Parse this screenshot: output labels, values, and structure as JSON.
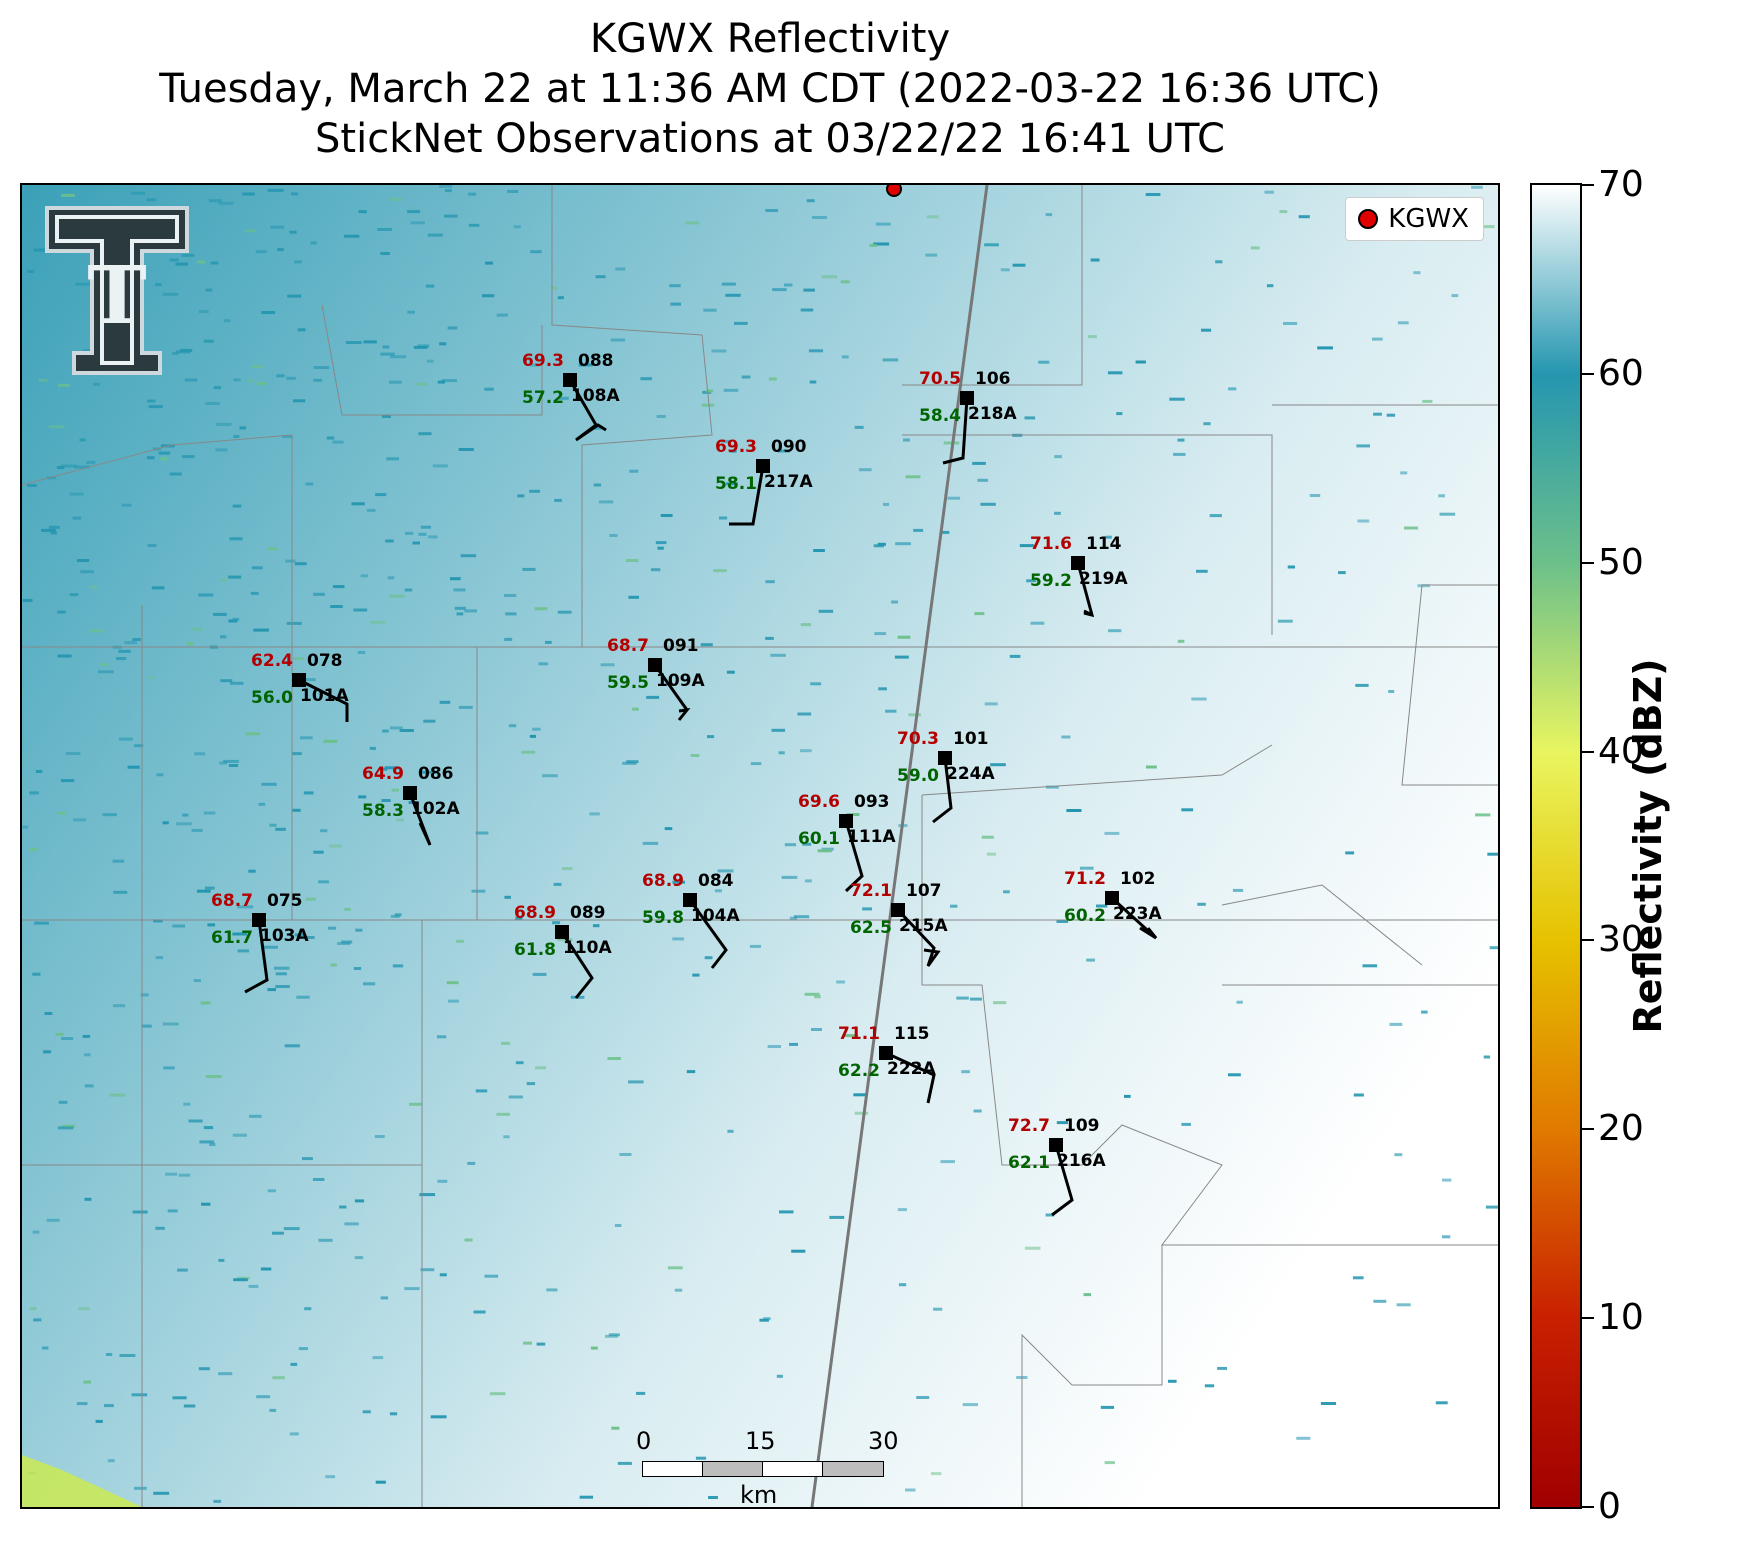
{
  "title": {
    "line1": "KGWX Reflectivity",
    "line2": "Tuesday, March 22 at 11:36 AM CDT (2022-03-22 16:36 UTC)",
    "line3": "StickNet Observations at 03/22/22 16:41 UTC"
  },
  "legend": {
    "label": "KGWX",
    "marker_color": "#e00000"
  },
  "logo": {
    "text": "T",
    "icon": "texas-tech-double-t-logo"
  },
  "scalebar": {
    "ticks": [
      "0",
      "15",
      "30"
    ],
    "unit": "km"
  },
  "colorbar": {
    "label": "Reflectivity (dBZ)",
    "ticks": [
      "0",
      "10",
      "20",
      "30",
      "40",
      "50",
      "60",
      "70"
    ],
    "range": [
      0,
      70
    ],
    "colors": [
      "#ffffff",
      "#2596b0",
      "#6cc08a",
      "#e8f560",
      "#e6c200",
      "#e07a00",
      "#c82000",
      "#a00000"
    ]
  },
  "stations": [
    {
      "id": "088",
      "probe": "108A",
      "temp": "69.3",
      "dew": "57.2"
    },
    {
      "id": "106",
      "probe": "218A",
      "temp": "70.5",
      "dew": "58.4"
    },
    {
      "id": "090",
      "probe": "217A",
      "temp": "69.3",
      "dew": "58.1"
    },
    {
      "id": "114",
      "probe": "219A",
      "temp": "71.6",
      "dew": "59.2"
    },
    {
      "id": "091",
      "probe": "109A",
      "temp": "68.7",
      "dew": "59.5"
    },
    {
      "id": "078",
      "probe": "101A",
      "temp": "62.4",
      "dew": "56.0"
    },
    {
      "id": "101",
      "probe": "224A",
      "temp": "70.3",
      "dew": "59.0"
    },
    {
      "id": "086",
      "probe": "102A",
      "temp": "64.9",
      "dew": "58.3"
    },
    {
      "id": "093",
      "probe": "111A",
      "temp": "69.6",
      "dew": "60.1"
    },
    {
      "id": "084",
      "probe": "104A",
      "temp": "68.9",
      "dew": "59.8"
    },
    {
      "id": "107",
      "probe": "215A",
      "temp": "72.1",
      "dew": "62.5"
    },
    {
      "id": "102",
      "probe": "223A",
      "temp": "71.2",
      "dew": "60.2"
    },
    {
      "id": "075",
      "probe": "103A",
      "temp": "68.7",
      "dew": "61.7"
    },
    {
      "id": "089",
      "probe": "110A",
      "temp": "68.9",
      "dew": "61.8"
    },
    {
      "id": "115",
      "probe": "222A",
      "temp": "71.1",
      "dew": "62.2"
    },
    {
      "id": "109",
      "probe": "216A",
      "temp": "72.7",
      "dew": "62.1"
    }
  ]
}
